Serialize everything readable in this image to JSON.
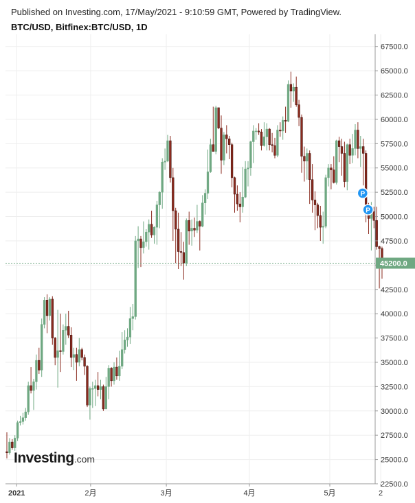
{
  "header": {
    "published": "Published on Investing.com, 17/May/2021 - 9:10:59 GMT, Powered by TradingView.",
    "symbol": "BTC/USD, Bitfinex:BTC/USD, 1D"
  },
  "logo": {
    "main": "Investing",
    "suffix": ".com"
  },
  "colors": {
    "up": "#6fa882",
    "down": "#8b2b1f",
    "grid": "#eeeeee",
    "axis": "#cccccc",
    "last_price_bg": "#6fa882",
    "marker": "#2196f3"
  },
  "chart_data": {
    "type": "candlestick",
    "ylim": [
      22500,
      68750
    ],
    "y_ticks": [
      "22500.0",
      "25000.0",
      "27500.0",
      "30000.0",
      "32500.0",
      "35000.0",
      "37500.0",
      "40000.0",
      "42500.0",
      "45000.0",
      "47500.0",
      "50000.0",
      "52500.0",
      "55000.0",
      "57500.0",
      "60000.0",
      "62500.0",
      "65000.0",
      "67500.0"
    ],
    "x_labels": [
      "2021",
      "2月",
      "3月",
      "4月",
      "5月",
      "2"
    ],
    "last_price": "45200.0",
    "markers": [
      {
        "label": "P",
        "date_index": 132,
        "price": 52400
      },
      {
        "label": "P",
        "date_index": 134,
        "price": 50700
      }
    ],
    "candles": [
      [
        25800,
        25700,
        27800,
        25100
      ],
      [
        25700,
        26800,
        27200,
        25500
      ],
      [
        26800,
        26200,
        27100,
        26000
      ],
      [
        26200,
        27200,
        27500,
        25900
      ],
      [
        27200,
        28800,
        29000,
        26900
      ],
      [
        28800,
        28900,
        29500,
        28500
      ],
      [
        28900,
        29300,
        29800,
        28600
      ],
      [
        29300,
        29900,
        30300,
        29000
      ],
      [
        29900,
        32600,
        33000,
        29600
      ],
      [
        32600,
        32100,
        34500,
        31800
      ],
      [
        32100,
        33000,
        33300,
        30100
      ],
      [
        33000,
        35200,
        35800,
        32200
      ],
      [
        35200,
        34200,
        36500,
        33800
      ],
      [
        34200,
        38900,
        39500,
        33500
      ],
      [
        38900,
        41400,
        41700,
        38500
      ],
      [
        41400,
        39800,
        42000,
        38000
      ],
      [
        39800,
        41500,
        41700,
        39300
      ],
      [
        41500,
        37500,
        41800,
        36800
      ],
      [
        37500,
        35500,
        37600,
        34700
      ],
      [
        35500,
        36200,
        40400,
        32400
      ],
      [
        36200,
        36100,
        40000,
        34000
      ],
      [
        36100,
        38300,
        38900,
        35800
      ],
      [
        38300,
        38700,
        40000,
        36800
      ],
      [
        38700,
        37800,
        40300,
        37500
      ],
      [
        37800,
        35500,
        38600,
        34500
      ],
      [
        35500,
        35800,
        36500,
        34200
      ],
      [
        35800,
        35000,
        36500,
        33100
      ],
      [
        35000,
        36300,
        37500,
        34600
      ],
      [
        36300,
        35500,
        36500,
        35200
      ],
      [
        35500,
        34600,
        35800,
        33700
      ],
      [
        34600,
        30600,
        34700,
        30400
      ],
      [
        30600,
        32300,
        32500,
        29100
      ],
      [
        32300,
        32300,
        33000,
        30300
      ],
      [
        32300,
        32600,
        33200,
        30500
      ],
      [
        32600,
        32200,
        34000,
        31500
      ],
      [
        32200,
        32500,
        33200,
        31200
      ],
      [
        32500,
        30200,
        32700,
        30000
      ],
      [
        30200,
        32500,
        33500,
        30800
      ],
      [
        32500,
        34400,
        34700,
        31200
      ],
      [
        34400,
        33100,
        34500,
        32500
      ],
      [
        33100,
        34500,
        35000,
        32700
      ],
      [
        34500,
        33600,
        35500,
        33200
      ],
      [
        33600,
        34600,
        36200,
        33100
      ],
      [
        34600,
        36300,
        38100,
        34300
      ],
      [
        36300,
        37300,
        38300,
        35900
      ],
      [
        37300,
        37600,
        38500,
        36600
      ],
      [
        37600,
        39500,
        40700,
        36900
      ],
      [
        39500,
        39700,
        41000,
        38300
      ],
      [
        39700,
        47500,
        48000,
        39400
      ],
      [
        47500,
        47700,
        49000,
        44700
      ],
      [
        47700,
        46800,
        48000,
        44800
      ],
      [
        46800,
        47400,
        49500,
        46200
      ],
      [
        47400,
        48400,
        48700,
        46900
      ],
      [
        48400,
        49200,
        49700,
        46600
      ],
      [
        49200,
        48100,
        50600,
        47800
      ],
      [
        48100,
        48900,
        49000,
        47200
      ],
      [
        48900,
        51200,
        51600,
        47100
      ],
      [
        51200,
        52500,
        52600,
        48800
      ],
      [
        52500,
        55600,
        56000,
        50800
      ],
      [
        55600,
        55700,
        57000,
        54800
      ],
      [
        55700,
        57800,
        58400,
        55600
      ],
      [
        57800,
        54000,
        58300,
        53500
      ],
      [
        54000,
        50600,
        55000,
        47500
      ],
      [
        50600,
        48700,
        50900,
        45200
      ],
      [
        48700,
        46400,
        50400,
        44600
      ],
      [
        46400,
        46300,
        48400,
        44900
      ],
      [
        46300,
        45200,
        47400,
        43500
      ],
      [
        45200,
        49600,
        49800,
        44900
      ],
      [
        49600,
        48500,
        50500,
        47100
      ],
      [
        48500,
        48800,
        49700,
        47000
      ],
      [
        48800,
        48600,
        49900,
        47900
      ],
      [
        48600,
        49500,
        51200,
        48300
      ],
      [
        49500,
        49000,
        49600,
        46500
      ],
      [
        49000,
        51400,
        52200,
        48900
      ],
      [
        51400,
        52400,
        52800,
        50200
      ],
      [
        52400,
        54600,
        56900,
        51800
      ],
      [
        54600,
        57400,
        58000,
        54500
      ],
      [
        57400,
        56700,
        61300,
        56700
      ],
      [
        56700,
        61200,
        61400,
        56400
      ],
      [
        61200,
        59100,
        61200,
        59000
      ],
      [
        59100,
        55800,
        60400,
        54400
      ],
      [
        55800,
        58400,
        58700,
        55300
      ],
      [
        58400,
        58000,
        59400,
        56500
      ],
      [
        58000,
        57400,
        58300,
        55900
      ],
      [
        57400,
        54000,
        57600,
        53000
      ],
      [
        54000,
        52300,
        54100,
        50400
      ],
      [
        52300,
        51300,
        53200,
        50600
      ],
      [
        51300,
        51000,
        52500,
        49400
      ],
      [
        51000,
        52000,
        55100,
        50400
      ],
      [
        52000,
        54900,
        55700,
        51900
      ],
      [
        54900,
        55000,
        55700,
        53100
      ],
      [
        55000,
        57700,
        57800,
        54200
      ],
      [
        57700,
        58800,
        59400,
        55500
      ],
      [
        58800,
        58800,
        59100,
        57900
      ],
      [
        58800,
        58700,
        59600,
        58400
      ],
      [
        58700,
        57300,
        59000,
        56800
      ],
      [
        57300,
        58200,
        59700,
        57200
      ],
      [
        58200,
        59000,
        59600,
        56800
      ],
      [
        59000,
        57400,
        59100,
        56800
      ],
      [
        57400,
        57300,
        58600,
        56600
      ],
      [
        57300,
        56300,
        58100,
        56000
      ],
      [
        56300,
        58900,
        59400,
        56100
      ],
      [
        58900,
        58800,
        59700,
        58200
      ],
      [
        58800,
        59900,
        60300,
        57900
      ],
      [
        59900,
        59800,
        61300,
        58600
      ],
      [
        59800,
        63600,
        64000,
        59700
      ],
      [
        63600,
        62900,
        64900,
        61200
      ],
      [
        62900,
        63300,
        63700,
        61800
      ],
      [
        63300,
        61500,
        64400,
        61300
      ],
      [
        61500,
        60200,
        62000,
        59300
      ],
      [
        60200,
        56200,
        60500,
        54500
      ],
      [
        56200,
        55700,
        57200,
        53600
      ],
      [
        55700,
        56500,
        57000,
        53800
      ],
      [
        56500,
        53800,
        56800,
        51300
      ],
      [
        53800,
        51700,
        55400,
        50400
      ],
      [
        51700,
        51200,
        52600,
        48600
      ],
      [
        51200,
        50100,
        51400,
        48800
      ],
      [
        50100,
        48900,
        51100,
        47500
      ],
      [
        48900,
        49000,
        50500,
        47200
      ],
      [
        49000,
        54000,
        54300,
        48800
      ],
      [
        54000,
        55000,
        55400,
        53100
      ],
      [
        55000,
        54800,
        55400,
        52800
      ],
      [
        54800,
        53500,
        56200,
        53400
      ],
      [
        53500,
        57800,
        57900,
        53300
      ],
      [
        57800,
        57200,
        58200,
        55600
      ],
      [
        57200,
        56500,
        58000,
        54200
      ],
      [
        56500,
        53600,
        57700,
        53000
      ],
      [
        53600,
        57400,
        57500,
        52700
      ],
      [
        57400,
        56300,
        58000,
        55400
      ],
      [
        56300,
        57000,
        58500,
        55500
      ],
      [
        57000,
        58900,
        59500,
        56300
      ],
      [
        58900,
        57000,
        59700,
        56000
      ],
      [
        57000,
        57200,
        58300,
        55100
      ],
      [
        57200,
        56500,
        58000,
        53200
      ],
      [
        56500,
        50200,
        56800,
        49400
      ],
      [
        50200,
        49800,
        51400,
        48200
      ],
      [
        49800,
        50500,
        51500,
        46500
      ],
      [
        50500,
        49600,
        51000,
        48800
      ],
      [
        49600,
        46900,
        51000,
        46600
      ],
      [
        46900,
        46700,
        47000,
        42600
      ],
      [
        46700,
        45200,
        46900,
        43600
      ]
    ]
  }
}
